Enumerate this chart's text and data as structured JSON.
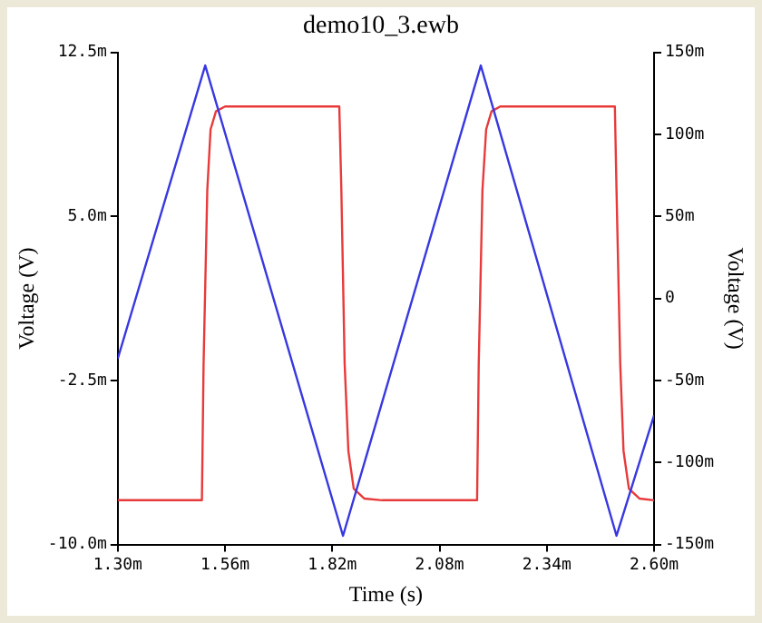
{
  "chart_data": {
    "type": "line",
    "title": "demo10_3.ewb",
    "xlabel": "Time (s)",
    "ylabel": "Voltage (V)",
    "y2label": "Voltage (V)",
    "xlim": [
      1.3,
      2.6
    ],
    "xticks": [
      {
        "value": 1.3,
        "label": "1.30m"
      },
      {
        "value": 1.56,
        "label": "1.56m"
      },
      {
        "value": 1.82,
        "label": "1.82m"
      },
      {
        "value": 2.08,
        "label": "2.08m"
      },
      {
        "value": 2.34,
        "label": "2.34m"
      },
      {
        "value": 2.6,
        "label": "2.60m"
      }
    ],
    "ylim": [
      -10,
      12.5
    ],
    "yticks": [
      {
        "value": -10,
        "label": "-10.0m"
      },
      {
        "value": -2.5,
        "label": "-2.5m"
      },
      {
        "value": 5,
        "label": "5.0m"
      },
      {
        "value": 12.5,
        "label": "12.5m"
      }
    ],
    "y2lim": [
      -150,
      150
    ],
    "y2ticks": [
      {
        "value": -150,
        "label": "-150m"
      },
      {
        "value": -100,
        "label": "-100m"
      },
      {
        "value": -50,
        "label": "-50m"
      },
      0,
      {
        "value": 50,
        "label": "50m"
      },
      {
        "value": 100,
        "label": "100m"
      },
      {
        "value": 150,
        "label": "150m"
      }
    ],
    "grid": false,
    "legend": false,
    "marker": "none",
    "line_style": "solid",
    "series": [
      {
        "color": "#3838e0",
        "x": [
          1.3,
          1.512,
          1.846,
          2.18,
          2.509,
          2.6
        ],
        "values": [
          -1.5,
          11.9,
          -9.6,
          11.9,
          -9.6,
          -4.1
        ]
      },
      {
        "color": "#e83a3a",
        "axis": "y2",
        "x": [
          1.3,
          1.504,
          1.508,
          1.517,
          1.525,
          1.538,
          1.56,
          1.837,
          1.842,
          1.85,
          1.859,
          1.872,
          1.898,
          1.941,
          2.171,
          2.175,
          2.184,
          2.193,
          2.206,
          2.227,
          2.505,
          2.509,
          2.518,
          2.526,
          2.539,
          2.565,
          2.6
        ],
        "values": [
          -123,
          -123,
          -40,
          66,
          103,
          114,
          117,
          117,
          66,
          -40,
          -93,
          -116,
          -122,
          -123,
          -123,
          -40,
          66,
          103,
          114,
          117,
          117,
          66,
          -40,
          -93,
          -116,
          -122,
          -123
        ]
      }
    ]
  }
}
